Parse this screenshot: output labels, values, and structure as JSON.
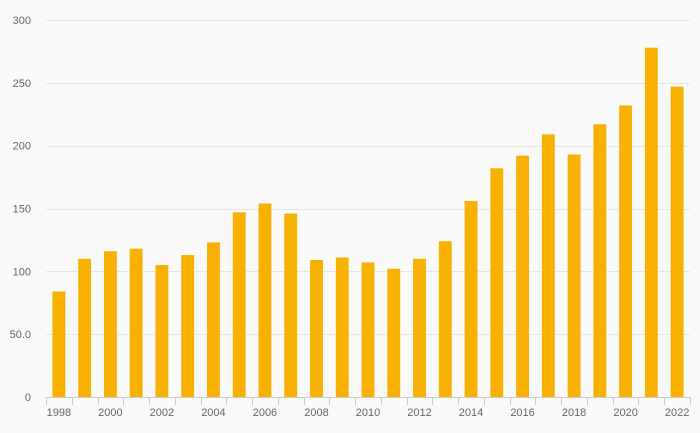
{
  "colors": {
    "bar": "#f8b100",
    "background": "#fafafa",
    "grid": "#e6e6e6",
    "axis": "#cccccc",
    "tick_text": "#666666"
  },
  "chart_data": {
    "type": "bar",
    "title": "",
    "xlabel": "",
    "ylabel": "",
    "grid": true,
    "legend": "none",
    "ylim": [
      0,
      300
    ],
    "y_ticks": [
      0,
      50,
      100,
      150,
      200,
      250,
      300
    ],
    "y_tick_labels": [
      "0",
      "50.0",
      "100",
      "150",
      "200",
      "250",
      "300"
    ],
    "categories": [
      "1998",
      "1999",
      "2000",
      "2001",
      "2002",
      "2003",
      "2004",
      "2005",
      "2006",
      "2007",
      "2008",
      "2009",
      "2010",
      "2011",
      "2012",
      "2013",
      "2014",
      "2015",
      "2016",
      "2017",
      "2018",
      "2019",
      "2020",
      "2021",
      "2022"
    ],
    "x_tick_labels": [
      "1998",
      "",
      "2000",
      "",
      "2002",
      "",
      "2004",
      "",
      "2006",
      "",
      "2008",
      "",
      "2010",
      "",
      "2012",
      "",
      "2014",
      "",
      "2016",
      "",
      "2018",
      "",
      "2020",
      "",
      "2022"
    ],
    "values": [
      84,
      110,
      116,
      118,
      105,
      113,
      123,
      147,
      154,
      146,
      109,
      111,
      107,
      102,
      110,
      124,
      156,
      182,
      192,
      209,
      193,
      217,
      232,
      278,
      247
    ]
  }
}
